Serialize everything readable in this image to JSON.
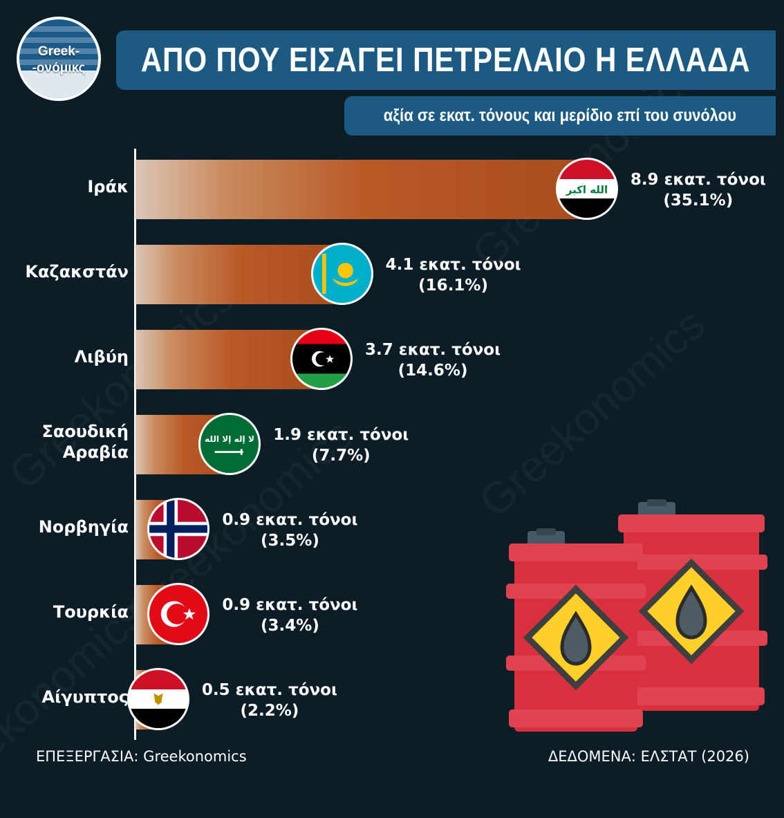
{
  "logo": {
    "line1": "Greek-",
    "line2": "-ονόμικς"
  },
  "header": {
    "title": "ΑΠΟ ΠΟΥ ΕΙΣΑΓΕΙ ΠΕΤΡΕΛΑΙΟ Η ΕΛΛΑΔΑ",
    "subtitle": "αξία σε εκατ. τόνους και μερίδιο επί του συνόλου"
  },
  "watermark_text": "Greekonomics",
  "footer": {
    "left": "ΕΠΕΞΕΡΓΑΣΙΑ: Greekonomics",
    "right": "ΔΕΔΟΜΕΝΑ: ΕΛΣΤΑΤ (2026)"
  },
  "colors": {
    "background": "#0c1d27",
    "banner": "#1d5a82",
    "bar_start": "#dcc6b6",
    "bar_end": "#a84d1c",
    "barrel_red": "#d9303f",
    "warning_yellow": "#ffd02a"
  },
  "icons": {
    "barrels": "oil-barrels-illustration"
  },
  "chart_data": {
    "type": "bar",
    "orientation": "horizontal",
    "unit": "εκατ. τόνοι",
    "categories": [
      "Ιράκ",
      "Καζακστάν",
      "Λιβύη",
      "Σαουδική Αραβία",
      "Νορβηγία",
      "Τουρκία",
      "Αίγυπτος"
    ],
    "category_lines": [
      [
        "Ιράκ"
      ],
      [
        "Καζακστάν"
      ],
      [
        "Λιβύη"
      ],
      [
        "Σαουδική",
        "Αραβία"
      ],
      [
        "Νορβηγία"
      ],
      [
        "Τουρκία"
      ],
      [
        "Αίγυπτος"
      ]
    ],
    "values": [
      8.9,
      4.1,
      3.7,
      1.9,
      0.9,
      0.9,
      0.5
    ],
    "shares": [
      35.1,
      16.1,
      14.6,
      7.7,
      3.5,
      3.4,
      2.2
    ],
    "value_labels": [
      "8.9 εκατ. τόνοι",
      "4.1 εκατ. τόνοι",
      "3.7 εκατ. τόνοι",
      "1.9 εκατ. τόνοι",
      "0.9 εκατ. τόνοι",
      "0.9 εκατ. τόνοι",
      "0.5 εκατ. τόνοι"
    ],
    "share_labels": [
      "(35.1%)",
      "(16.1%)",
      "(14.6%)",
      "(7.7%)",
      "(3.5%)",
      "(3.4%)",
      "(2.2%)"
    ],
    "flags": [
      "iraq",
      "kazakhstan",
      "libya",
      "saudi-arabia",
      "norway",
      "turkey",
      "egypt"
    ],
    "xlim": [
      0,
      10.5
    ],
    "grid": false,
    "legend": "none"
  }
}
